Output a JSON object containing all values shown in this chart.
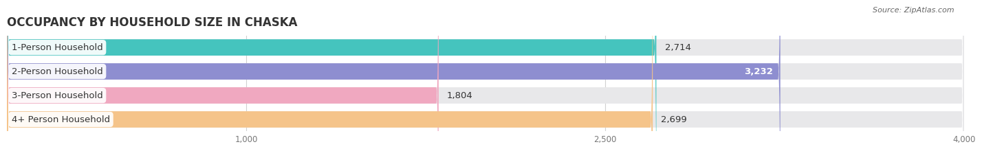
{
  "title": "OCCUPANCY BY HOUSEHOLD SIZE IN CHASKA",
  "source": "Source: ZipAtlas.com",
  "categories": [
    "1-Person Household",
    "2-Person Household",
    "3-Person Household",
    "4+ Person Household"
  ],
  "values": [
    2714,
    3232,
    1804,
    2699
  ],
  "bar_colors": [
    "#45C4BE",
    "#8E8ED0",
    "#F0A8C0",
    "#F5C48A"
  ],
  "value_inside": [
    false,
    true,
    false,
    false
  ],
  "xlim_min": 0,
  "xlim_max": 4000,
  "xticks": [
    1000,
    2500,
    4000
  ],
  "bg_color": "#ffffff",
  "bar_bg_color": "#e8e8ea",
  "title_color": "#333333",
  "source_color": "#666666",
  "label_fontsize": 9.5,
  "value_fontsize": 9.5,
  "title_fontsize": 12
}
